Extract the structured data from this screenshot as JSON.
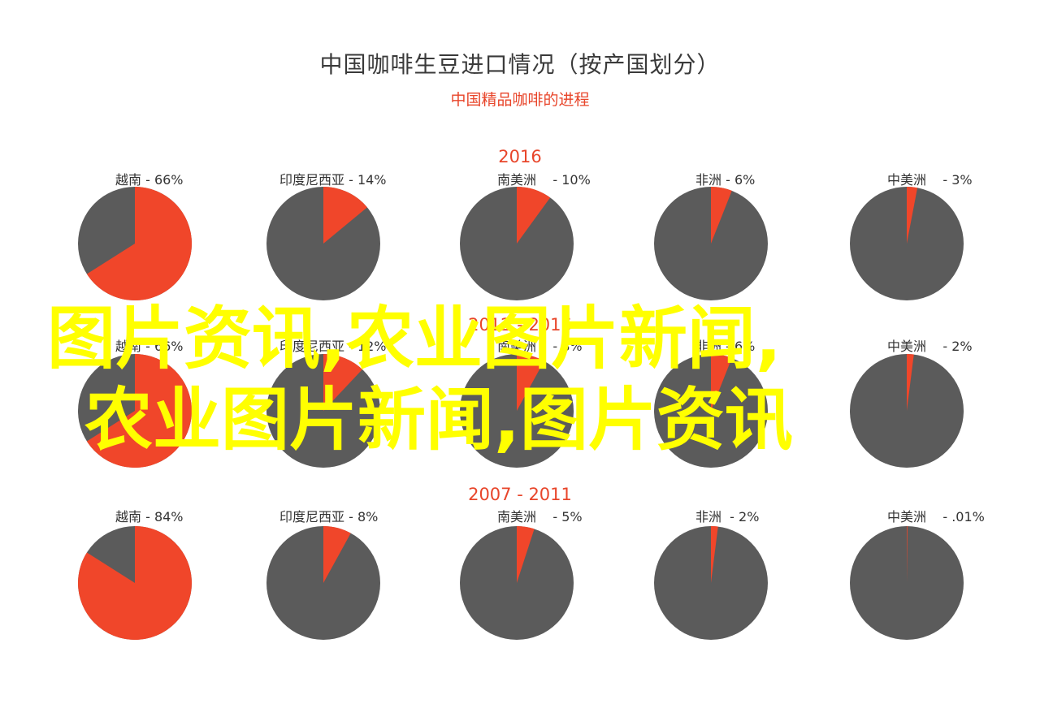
{
  "title": "中国咖啡生豆进口情况（按产国划分）",
  "subtitle": "中国精品咖啡的进程",
  "colors": {
    "highlight": "#f0462a",
    "base": "#5b5b5b",
    "accent_text": "#e8452a",
    "overlay": "#ffff00"
  },
  "overlay_text": {
    "line1": "图片资讯,农业图片新闻,",
    "line2": "农业图片新闻,图片资讯"
  },
  "chart_data": [
    {
      "type": "pie",
      "title": "2016",
      "slices": [
        {
          "label": "越南 - 66%",
          "value": 66
        },
        {
          "label": "印度尼西亚 - 14%",
          "value": 14
        },
        {
          "label": "南美洲    - 10%",
          "value": 10
        },
        {
          "label": "非洲 - 6%",
          "value": 6
        },
        {
          "label": "中美洲    - 3%",
          "value": 3
        }
      ]
    },
    {
      "type": "pie",
      "title": "2012 - 2016",
      "slices": [
        {
          "label": "越南 - 66%",
          "value": 66
        },
        {
          "label": "印度尼西亚 - 12%",
          "value": 12
        },
        {
          "label": "南美洲    - 8%",
          "value": 8
        },
        {
          "label": "非洲 - 6%",
          "value": 6
        },
        {
          "label": "中美洲    - 2%",
          "value": 2
        }
      ]
    },
    {
      "type": "pie",
      "title": "2007 - 2011",
      "slices": [
        {
          "label": "越南 - 84%",
          "value": 84
        },
        {
          "label": "印度尼西亚 - 8%",
          "value": 8
        },
        {
          "label": "南美洲    - 5%",
          "value": 5
        },
        {
          "label": "非洲  - 2%",
          "value": 2
        },
        {
          "label": "中美洲    - .01%",
          "value": 0.01
        }
      ]
    }
  ]
}
